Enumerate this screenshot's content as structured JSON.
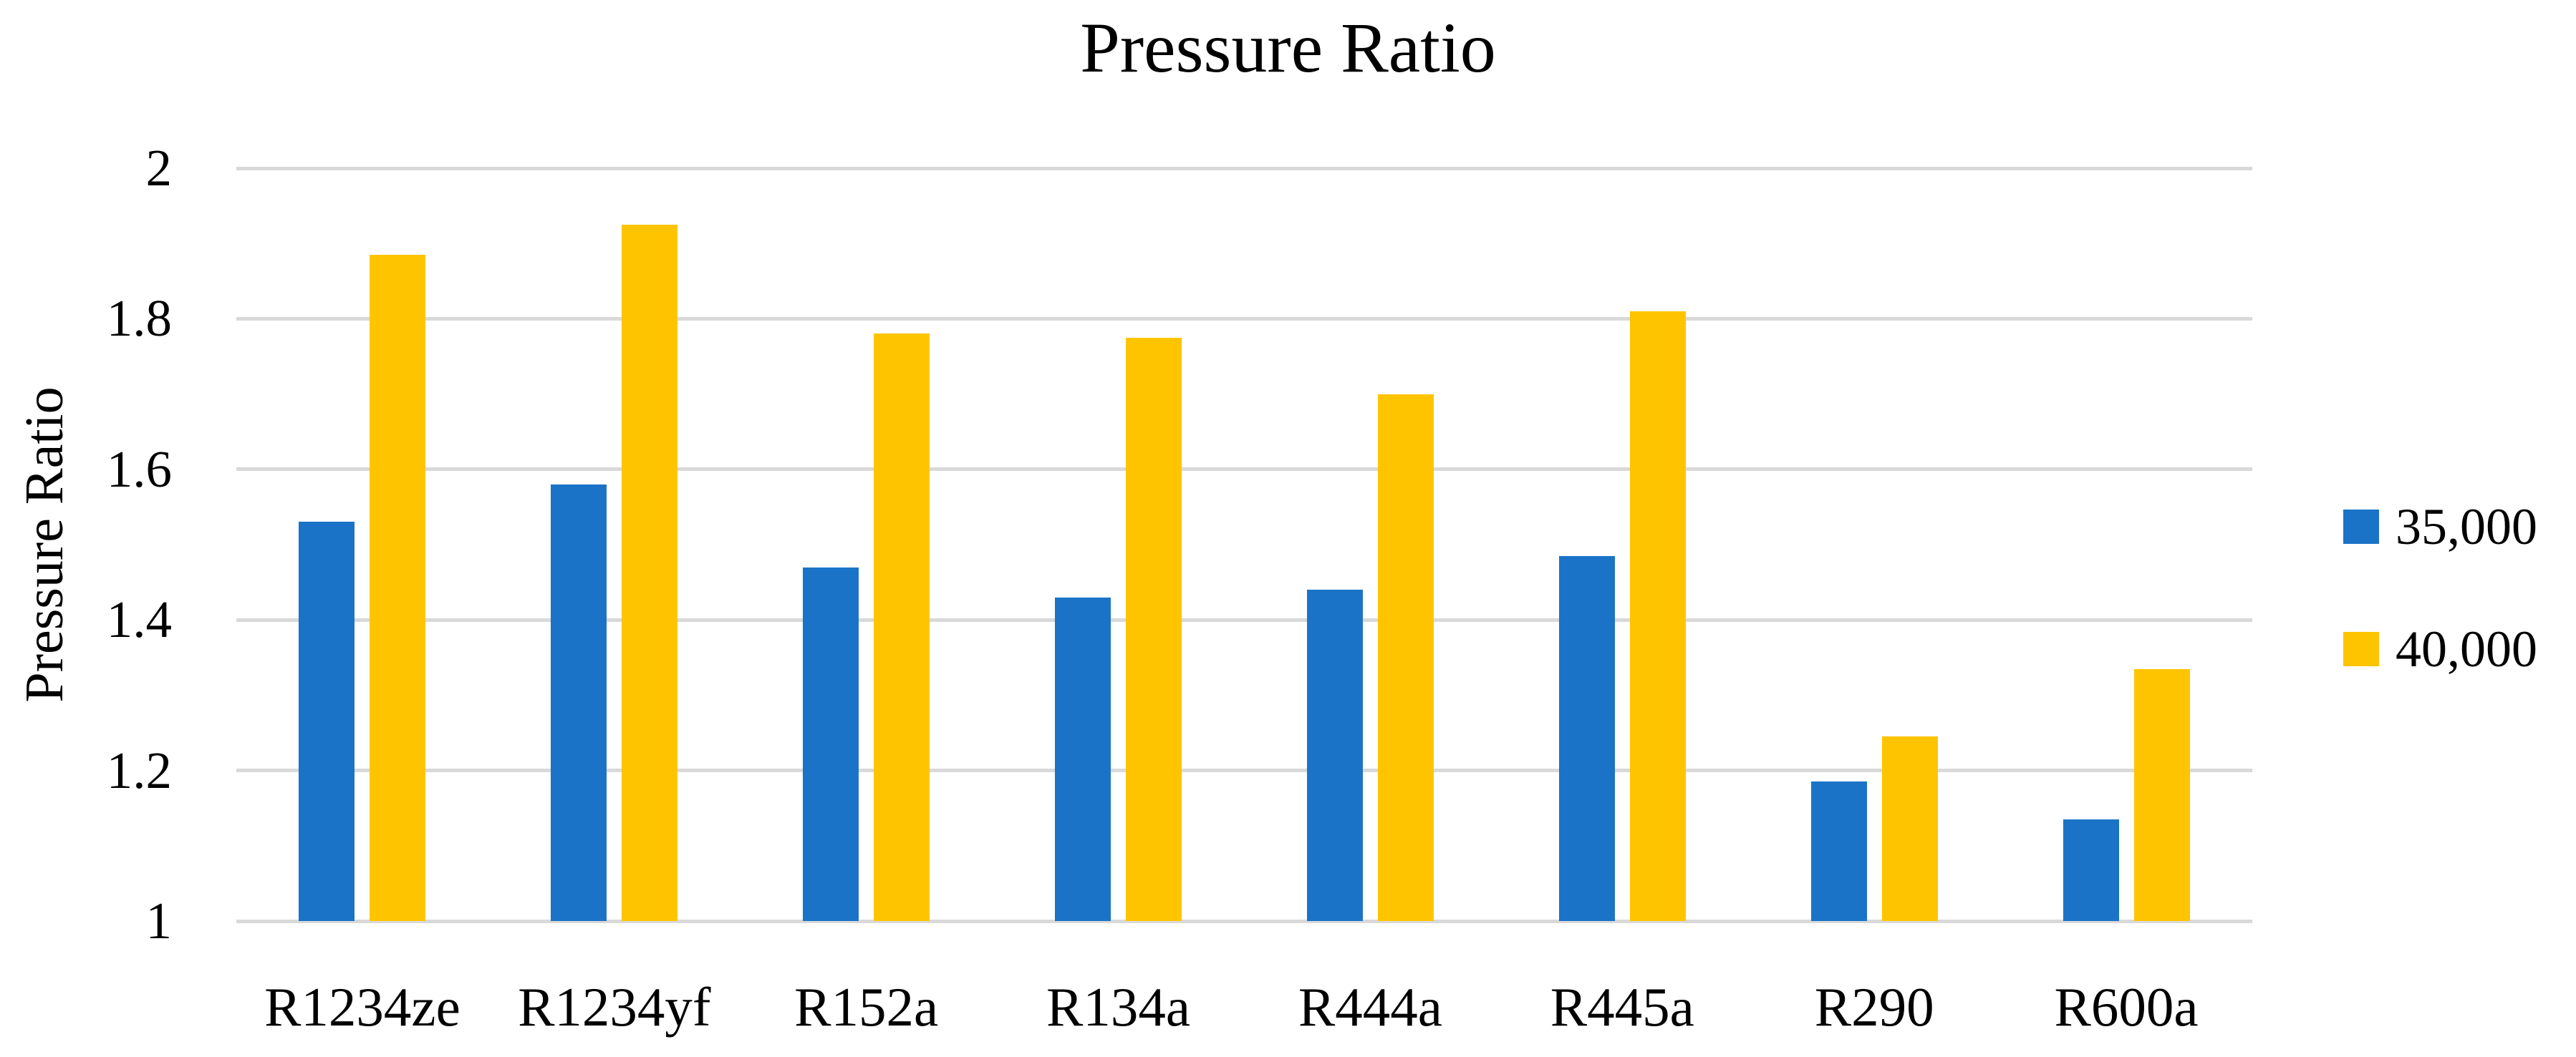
{
  "chart_data": {
    "type": "bar",
    "title": "Pressure Ratio",
    "xlabel": "",
    "ylabel": "Pressure Ratio",
    "categories": [
      "R1234ze",
      "R1234yf",
      "R152a",
      "R134a",
      "R444a",
      "R445a",
      "R290",
      "R600a"
    ],
    "series": [
      {
        "name": "35,000",
        "color": "#1B73C7",
        "values": [
          1.53,
          1.58,
          1.47,
          1.43,
          1.44,
          1.485,
          1.185,
          1.135
        ]
      },
      {
        "name": "40,000",
        "color": "#FFC400",
        "values": [
          1.885,
          1.925,
          1.78,
          1.775,
          1.7,
          1.81,
          1.245,
          1.335
        ]
      }
    ],
    "ylim": [
      1,
      2
    ],
    "ytick_step": 0.2,
    "yticks": [
      "2",
      "1.8",
      "1.6",
      "1.4",
      "1.2",
      "1"
    ],
    "grid": true,
    "gridline_color": "#D9D9D9",
    "legend_position": "right",
    "background_color": "#FFFFFF",
    "text_color": "#000000"
  }
}
